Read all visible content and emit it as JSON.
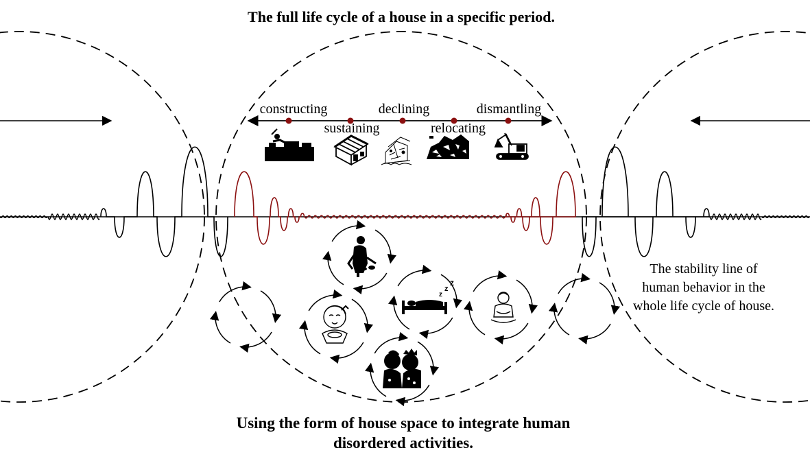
{
  "title": "The full life cycle of a house in a specific period.",
  "stages_top": [
    "constructing",
    "declining",
    "dismantling"
  ],
  "stages_bottom": [
    "sustaining",
    "relocating"
  ],
  "stability_note": [
    "The stability line of",
    "human behavior in the",
    "whole life cycle of house."
  ],
  "bottom_caption": [
    "Using the form of house space to integrate human",
    "disordered activities."
  ],
  "colors": {
    "ink": "#000000",
    "accent": "#8b1010"
  },
  "icons": {
    "stages": [
      "building-tools-icon",
      "house-icon",
      "declining-house-icon",
      "ruins-icon",
      "excavator-icon"
    ],
    "activities": [
      "person-cooking-icon",
      "person-sleeping-icon",
      "child-eating-icon",
      "couple-kissing-icon",
      "person-sitting-icon"
    ]
  }
}
